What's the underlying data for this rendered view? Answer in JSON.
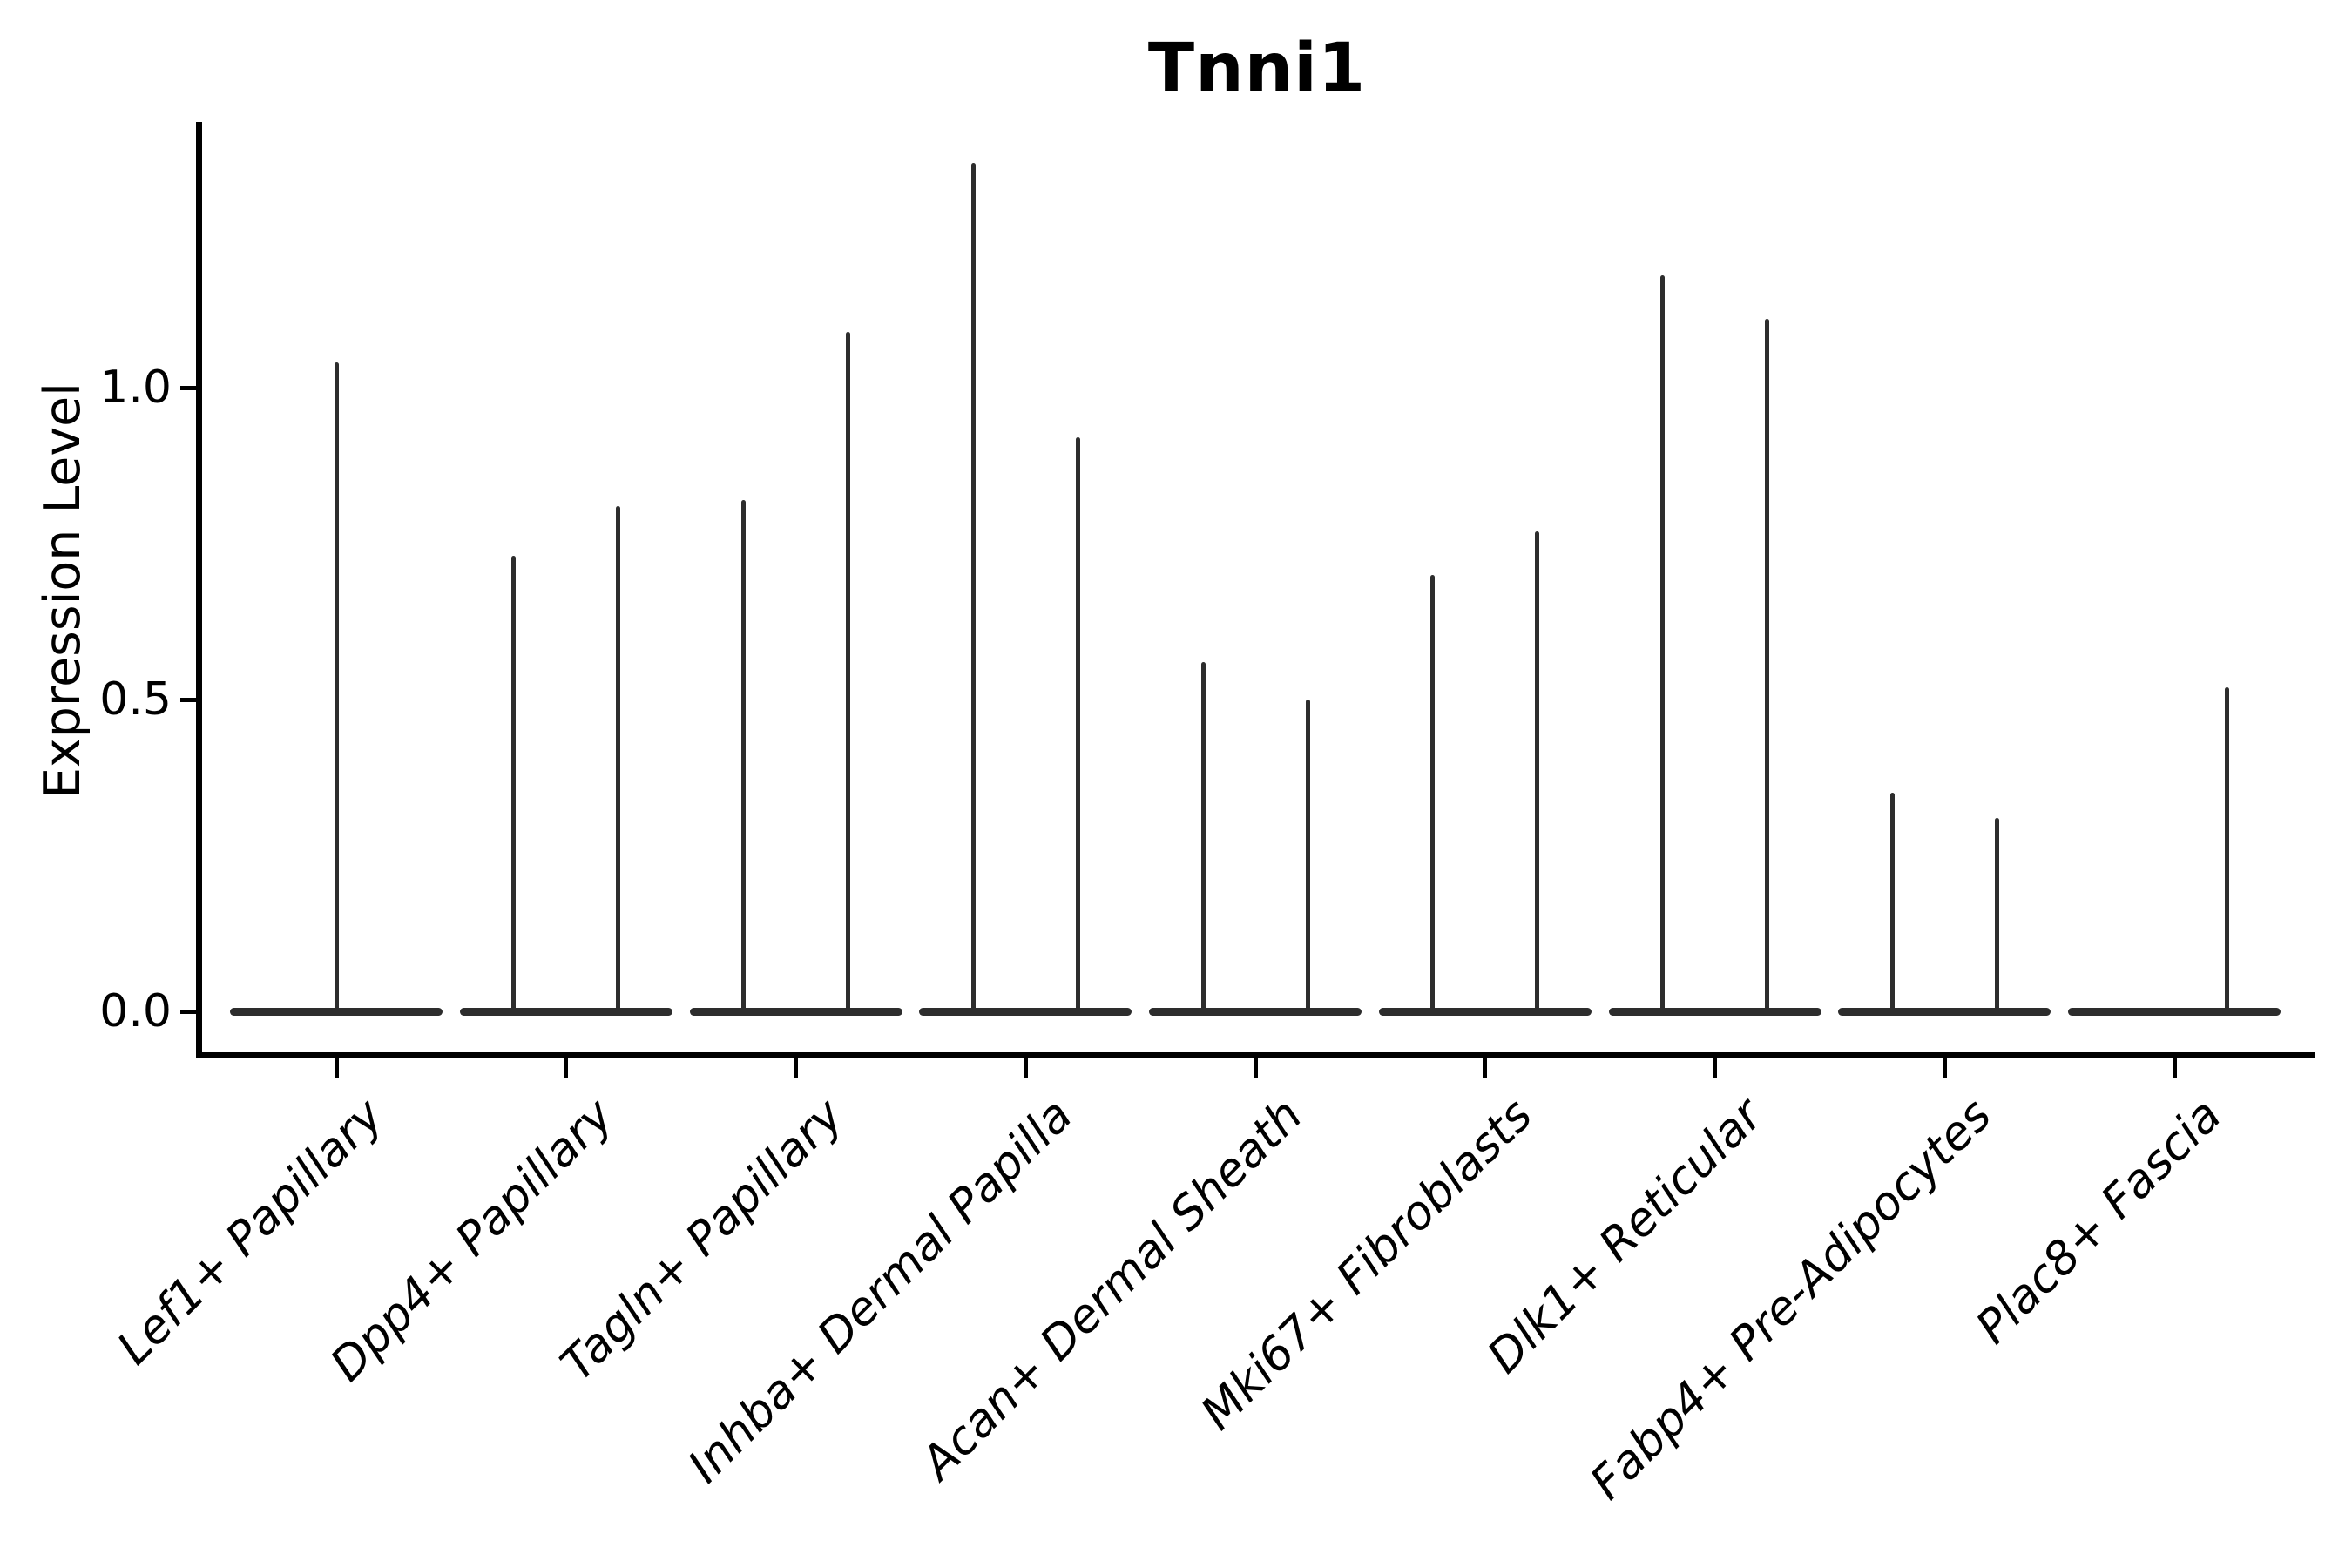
{
  "chart_data": {
    "type": "violin",
    "title": "Tnni1",
    "ylabel": "Expression Level",
    "xlabel": "",
    "grid": false,
    "legend": "none",
    "background_color": "#ffffff",
    "axis_color": "#000000",
    "violin_color": "#2d2d2d",
    "y_axis": {
      "range": [
        -0.07,
        1.43
      ],
      "ticks": [
        {
          "value": 0.0,
          "label": "0.0"
        },
        {
          "value": 0.5,
          "label": "0.5"
        },
        {
          "value": 1.0,
          "label": "1.0"
        }
      ]
    },
    "categories": [
      {
        "label": "Lef1+ Papillary",
        "violins": [
          {
            "position": "full",
            "peak": 1.04
          }
        ]
      },
      {
        "label": "Dpp4+ Papillary",
        "violins": [
          {
            "position": "left",
            "peak": 0.73
          },
          {
            "position": "right",
            "peak": 0.81
          }
        ]
      },
      {
        "label": "Tagln+ Papillary",
        "violins": [
          {
            "position": "left",
            "peak": 0.82
          },
          {
            "position": "right",
            "peak": 1.09
          }
        ]
      },
      {
        "label": "Inhba+ Dermal Papilla",
        "violins": [
          {
            "position": "left",
            "peak": 1.36
          },
          {
            "position": "right",
            "peak": 0.92
          }
        ]
      },
      {
        "label": "Acan+ Dermal Sheath",
        "violins": [
          {
            "position": "left",
            "peak": 0.56
          },
          {
            "position": "right",
            "peak": 0.5
          }
        ]
      },
      {
        "label": "Mki67+ Fibroblasts",
        "violins": [
          {
            "position": "left",
            "peak": 0.7
          },
          {
            "position": "right",
            "peak": 0.77
          }
        ]
      },
      {
        "label": "Dlk1+ Reticular",
        "violins": [
          {
            "position": "left",
            "peak": 1.18
          },
          {
            "position": "right",
            "peak": 1.11
          }
        ]
      },
      {
        "label": "Fabp4+ Pre-Adipocytes",
        "violins": [
          {
            "position": "left",
            "peak": 0.35
          },
          {
            "position": "right",
            "peak": 0.31
          }
        ]
      },
      {
        "label": "Plac8+ Fascia",
        "violins": [
          {
            "position": "left",
            "peak": 0.0
          },
          {
            "position": "right",
            "peak": 0.52
          }
        ]
      }
    ]
  }
}
